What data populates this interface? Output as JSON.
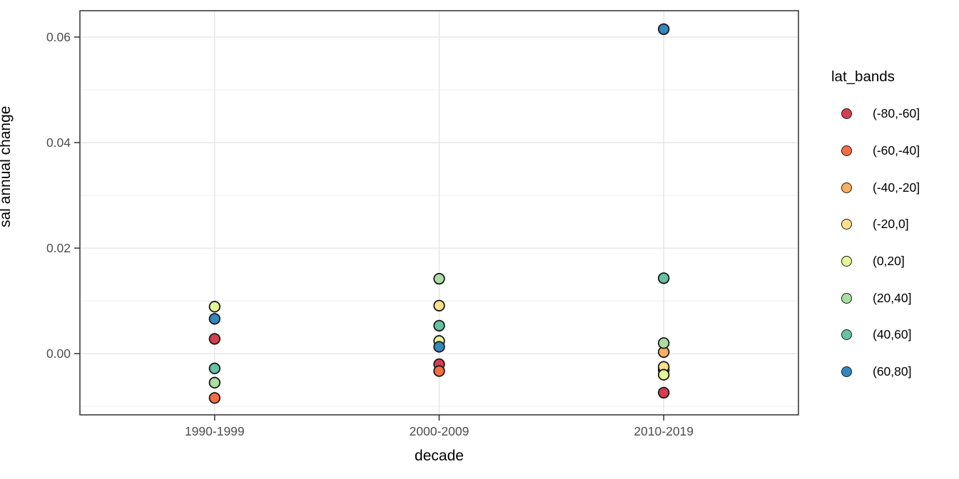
{
  "chart_data": {
    "type": "scatter",
    "title": "",
    "xlabel": "decade",
    "ylabel": "sal annual change",
    "categories": [
      "1990-1999",
      "2000-2009",
      "2010-2019"
    ],
    "ylim": [
      -0.0116,
      0.065
    ],
    "yticks": [
      0.0,
      0.02,
      0.04,
      0.06
    ],
    "ytick_labels": [
      "0.00",
      "0.02",
      "0.04",
      "0.06"
    ],
    "yticks_minor": [
      -0.01,
      0.01,
      0.03,
      0.05
    ],
    "grid": "horizontal major+minor gridlines, vertical major gridline at each category; panel border; theme_bw style",
    "legend": {
      "title": "lat_bands",
      "position": "right"
    },
    "point_style": {
      "stroke": "#1a1a1a",
      "palette": "Spectral"
    },
    "series": [
      {
        "name": "(-80,-60]",
        "color": "#d53e4f",
        "values": [
          0.0028,
          -0.002,
          -0.0074
        ]
      },
      {
        "name": "(-60,-40]",
        "color": "#f46d43",
        "values": [
          -0.0084,
          -0.0033,
          -0.0031
        ]
      },
      {
        "name": "(-40,-20]",
        "color": "#fdae61",
        "values": [
          null,
          null,
          0.0003
        ]
      },
      {
        "name": "(-20,0]",
        "color": "#fee08b",
        "values": [
          null,
          0.0091,
          -0.0025
        ]
      },
      {
        "name": "(0,20]",
        "color": "#e6f598",
        "values": [
          0.0089,
          0.0024,
          -0.004
        ]
      },
      {
        "name": "(20,40]",
        "color": "#abdda4",
        "values": [
          -0.0055,
          0.0142,
          0.002
        ]
      },
      {
        "name": "(40,60]",
        "color": "#66c2a5",
        "values": [
          -0.0028,
          0.0053,
          0.0143
        ]
      },
      {
        "name": "(60,80]",
        "color": "#3288bd",
        "values": [
          0.0066,
          0.0013,
          0.0615
        ]
      }
    ],
    "style_colors": {
      "panel_border": "#3c3c3c",
      "grid_major": "#e4e4e4",
      "grid_minor": "#f1f1f1",
      "tick_mark": "#333333",
      "tick_label": "#4d4d4d",
      "background": "#ffffff"
    }
  }
}
